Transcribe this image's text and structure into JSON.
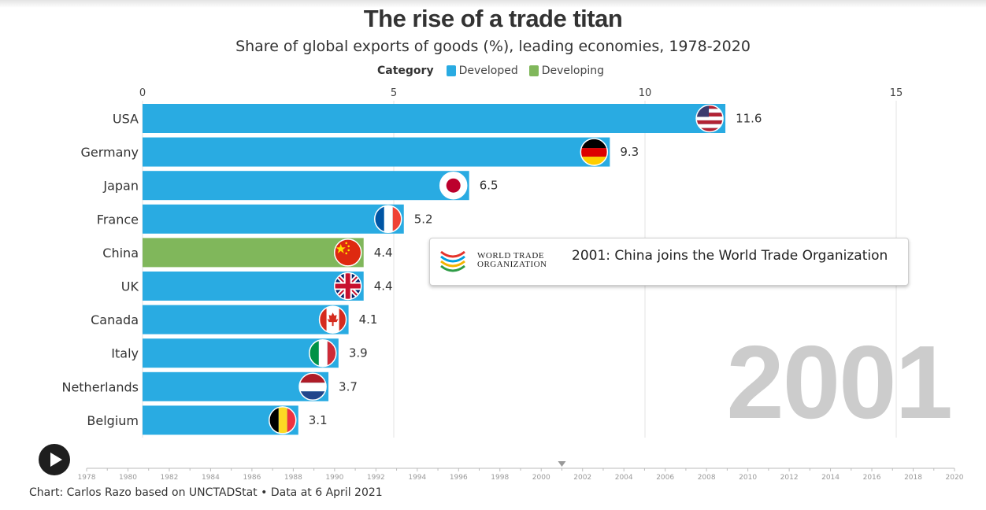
{
  "title": "The rise of a trade titan",
  "subtitle": "Share of global exports of goods (%), leading economies, 1978-2020",
  "legend": {
    "title": "Category",
    "items": [
      {
        "label": "Developed",
        "color": "#29abe2"
      },
      {
        "label": "Developing",
        "color": "#80b75b"
      }
    ]
  },
  "annotation": {
    "logo_line1": "WORLD TRADE",
    "logo_line2": "ORGANIZATION",
    "text": "2001: China joins the World Trade Organization"
  },
  "current_year": "2001",
  "footer": "Chart: Carlos Razo based on UNCTADStat • Data at 6 April 2021",
  "timeline": {
    "ticks": [
      "1978",
      "1980",
      "1982",
      "1984",
      "1986",
      "1988",
      "1990",
      "1992",
      "1994",
      "1996",
      "1998",
      "2000",
      "2002",
      "2004",
      "2006",
      "2008",
      "2010",
      "2012",
      "2014",
      "2016",
      "2018",
      "2020"
    ],
    "start_year": 1978,
    "end_year": 2020,
    "current_year": 2001
  },
  "chart_data": {
    "type": "bar",
    "orientation": "horizontal",
    "xlim": [
      0,
      15
    ],
    "x_ticks": [
      0,
      5,
      10,
      15
    ],
    "grid": true,
    "categories": [
      "USA",
      "Germany",
      "Japan",
      "France",
      "China",
      "UK",
      "Canada",
      "Italy",
      "Netherlands",
      "Belgium"
    ],
    "values": [
      11.6,
      9.3,
      6.5,
      5.2,
      4.4,
      4.4,
      4.1,
      3.9,
      3.7,
      3.1
    ],
    "value_labels": [
      "11.6",
      "9.3",
      "6.5",
      "5.2",
      "4.4",
      "4.4",
      "4.1",
      "3.9",
      "3.7",
      "3.1"
    ],
    "category_group": [
      "Developed",
      "Developed",
      "Developed",
      "Developed",
      "Developing",
      "Developed",
      "Developed",
      "Developed",
      "Developed",
      "Developed"
    ],
    "flags": [
      "usa-flag-icon",
      "germany-flag-icon",
      "japan-flag-icon",
      "france-flag-icon",
      "china-flag-icon",
      "uk-flag-icon",
      "canada-flag-icon",
      "italy-flag-icon",
      "netherlands-flag-icon",
      "belgium-flag-icon"
    ],
    "colors": {
      "Developed": "#29abe2",
      "Developing": "#80b75b"
    }
  }
}
